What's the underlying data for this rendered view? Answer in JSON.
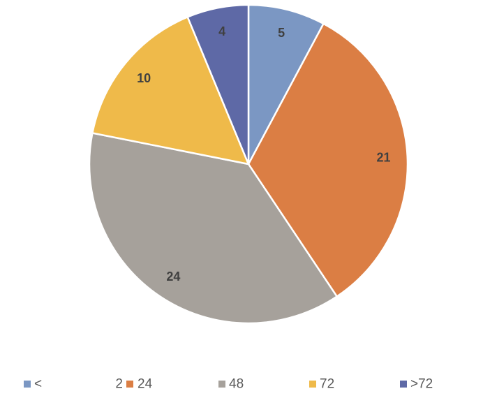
{
  "chart_data": {
    "type": "pie",
    "title": "",
    "start_angle_deg": 0,
    "direction": "clockwise",
    "show_data_labels": true,
    "legend_position": "bottom",
    "slices": [
      {
        "label": "<2",
        "value": 5,
        "color": "#7b97c3"
      },
      {
        "label": "24",
        "value": 21,
        "color": "#db7e44"
      },
      {
        "label": "48",
        "value": 24,
        "color": "#a6a19b"
      },
      {
        "label": "72",
        "value": 10,
        "color": "#efba4a"
      },
      {
        "label": ">72",
        "value": 4,
        "color": "#5e69a6"
      }
    ]
  },
  "legend": {
    "items": [
      {
        "marker_color": "#7b97c3",
        "text": "<",
        "series": "<2"
      },
      {
        "marker_color": null,
        "text": "2",
        "series": "<2"
      },
      {
        "marker_color": "#db7e44",
        "text": "24",
        "series": "24"
      },
      {
        "marker_color": "#a6a19b",
        "text": "48",
        "series": "48"
      },
      {
        "marker_color": "#efba4a",
        "text": "72",
        "series": "72"
      },
      {
        "marker_color": "#5e69a6",
        "text": ">72",
        "series": ">72"
      }
    ]
  }
}
